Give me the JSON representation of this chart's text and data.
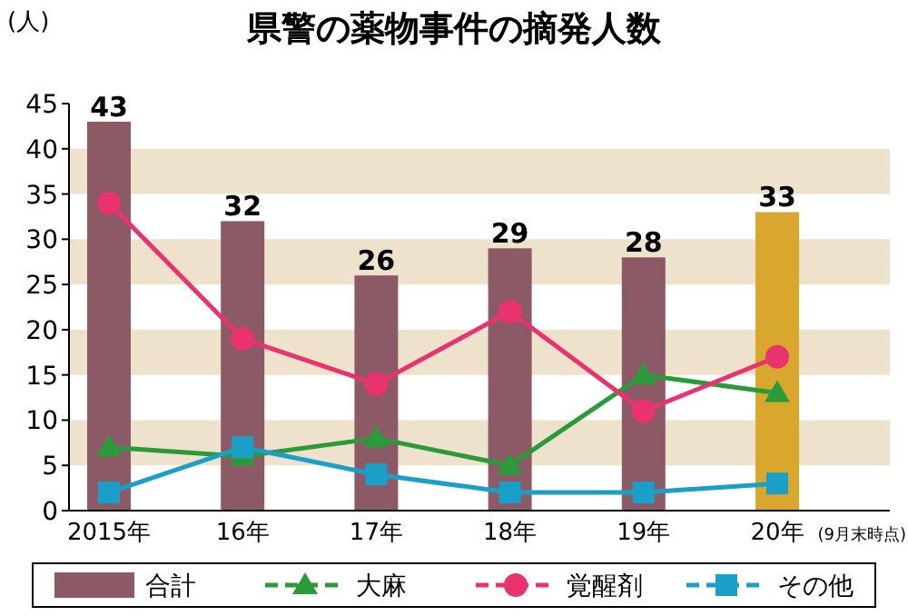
{
  "chart_data": {
    "type": "bar",
    "title": "県警の薬物事件の摘発人数",
    "ylabel": "(人)",
    "categories": [
      "2015年",
      "16年",
      "17年",
      "18年",
      "19年",
      "20年"
    ],
    "annotations": [
      "(9月末時点)"
    ],
    "ylim": [
      0,
      45
    ],
    "yticks": [
      0,
      5,
      10,
      15,
      20,
      25,
      30,
      35,
      40,
      45
    ],
    "bands": [
      {
        "axis": "y",
        "from": 5,
        "to": 10,
        "color": "#efe2cc"
      },
      {
        "axis": "y",
        "from": 15,
        "to": 20,
        "color": "#efe2cc"
      },
      {
        "axis": "y",
        "from": 25,
        "to": 30,
        "color": "#efe2cc"
      },
      {
        "axis": "y",
        "from": 35,
        "to": 40,
        "color": "#efe2cc"
      }
    ],
    "legend": "bottom",
    "series": [
      {
        "name": "合計",
        "color": "#8c5a66",
        "colors": [
          "#8c5a66",
          "#8c5a66",
          "#8c5a66",
          "#8c5a66",
          "#8c5a66",
          "#d9a62e"
        ],
        "values": [
          43,
          32,
          26,
          29,
          28,
          33
        ],
        "value_labels": [
          "43",
          "32",
          "26",
          "29",
          "28",
          "33"
        ]
      },
      {
        "name": "大麻",
        "type": "line",
        "color": "#2a9a3a",
        "marker": "triangle",
        "values": [
          7,
          6,
          8,
          5,
          15,
          13
        ]
      },
      {
        "name": "覚醒剤",
        "type": "line",
        "color": "#e8336e",
        "marker": "circle",
        "values": [
          34,
          19,
          14,
          22,
          11,
          17
        ]
      },
      {
        "name": "その他",
        "type": "line",
        "color": "#1aa0c8",
        "marker": "square",
        "values": [
          2,
          7,
          4,
          2,
          2,
          3
        ]
      }
    ]
  }
}
